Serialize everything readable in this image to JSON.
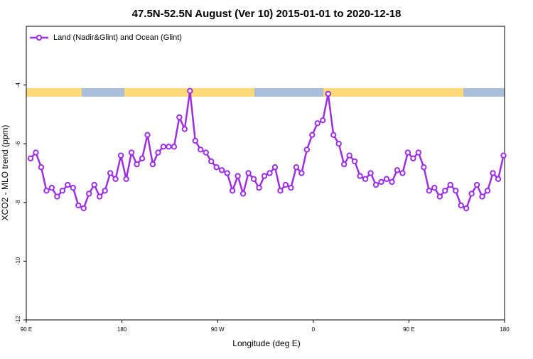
{
  "chart_data": {
    "type": "line",
    "title": "47.5N-52.5N August (Ver 10)   2015-01-01 to 2020-12-18",
    "x_label": "Longitude (deg E)",
    "y_label": "XCO2 - MLO trend (ppm)",
    "x": [
      94,
      99,
      104,
      109,
      114,
      119,
      124,
      129,
      134,
      139,
      144,
      149,
      154,
      159,
      164,
      169,
      174,
      179,
      184,
      189,
      194,
      199,
      204,
      209,
      214,
      219,
      224,
      229,
      234,
      239,
      244,
      249,
      254,
      259,
      264,
      269,
      274,
      279,
      284,
      289,
      294,
      299,
      304,
      309,
      314,
      319,
      324,
      329,
      334,
      339,
      344,
      349,
      354,
      359,
      364,
      369,
      374,
      379,
      384,
      389,
      394,
      399,
      404,
      409,
      414,
      419,
      424,
      429,
      434,
      439,
      444,
      449,
      454,
      459,
      464,
      469,
      474,
      479,
      484,
      489,
      494,
      499,
      504,
      509,
      514,
      519,
      524,
      529,
      534,
      539
    ],
    "series": [
      {
        "name": "Land (Nadir&Glint) and Ocean (Glint)",
        "color": "#9b30e0",
        "values": [
          -6.5,
          -6.3,
          -6.8,
          -7.6,
          -7.5,
          -7.8,
          -7.6,
          -7.4,
          -7.5,
          -8.1,
          -8.2,
          -7.7,
          -7.4,
          -7.8,
          -7.6,
          -7.0,
          -7.2,
          -6.4,
          -7.2,
          -6.3,
          -6.7,
          -6.5,
          -5.7,
          -6.7,
          -6.3,
          -6.1,
          -6.1,
          -6.1,
          -5.1,
          -5.5,
          -4.2,
          -5.9,
          -6.2,
          -6.3,
          -6.6,
          -6.8,
          -6.9,
          -7.0,
          -7.6,
          -7.1,
          -7.7,
          -7.0,
          -7.2,
          -7.5,
          -7.1,
          -7.0,
          -6.8,
          -7.6,
          -7.4,
          -7.5,
          -6.8,
          -7.0,
          -6.2,
          -5.7,
          -5.3,
          -5.2,
          -4.3,
          -5.7,
          -6.0,
          -6.7,
          -6.4,
          -6.6,
          -7.1,
          -7.2,
          -7.0,
          -7.4,
          -7.3,
          -7.2,
          -7.3,
          -6.9,
          -7.0,
          -6.3,
          -6.5,
          -6.3,
          -6.8,
          -7.6,
          -7.5,
          -7.8,
          -7.6,
          -7.4,
          -7.6,
          -8.1,
          -8.2,
          -7.7,
          -7.4,
          -7.8,
          -7.6,
          -7.0,
          -7.2,
          -6.4
        ]
      }
    ],
    "xlim": [
      90,
      540
    ],
    "xticks": [
      {
        "value": 90,
        "label": "90 E"
      },
      {
        "value": 180,
        "label": "180"
      },
      {
        "value": 270,
        "label": "90 W"
      },
      {
        "value": 360,
        "label": "0"
      },
      {
        "value": 450,
        "label": "90 E"
      },
      {
        "value": 540,
        "label": "180"
      }
    ],
    "ylim": [
      -12,
      -2
    ],
    "yticks": [
      -12,
      -10,
      -8,
      -6,
      -4
    ],
    "legend": "top-left"
  }
}
